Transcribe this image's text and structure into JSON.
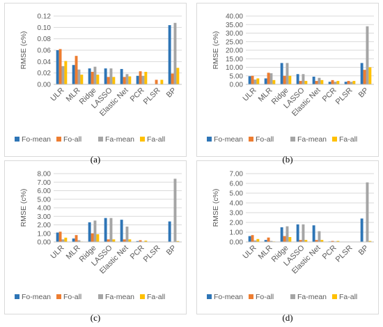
{
  "colors": {
    "Fo-mean": "#2e75b6",
    "Fo-all": "#ed7d31",
    "Fa-mean": "#a5a5a5",
    "Fa-all": "#ffc000"
  },
  "chart_data": [
    {
      "type": "bar",
      "panel_label": "(a)",
      "ylabel": "RMSE (c%)",
      "ylim": [
        0,
        0.12
      ],
      "yticks": [
        "0.00",
        "0.02",
        "0.04",
        "0.06",
        "0.08",
        "0.10",
        "0.12"
      ],
      "categories": [
        "ULR",
        "MLR",
        "Ridge",
        "LASSO",
        "Elastic Net",
        "PCR",
        "PLSR",
        "BP"
      ],
      "legend_position": "bottom",
      "grid": true,
      "series": [
        {
          "name": "Fo-mean",
          "values": [
            0.06,
            0.034,
            0.028,
            0.028,
            0.027,
            0.015,
            0,
            0.104
          ]
        },
        {
          "name": "Fo-all",
          "values": [
            0.062,
            0.05,
            0.022,
            0.013,
            0.013,
            0.023,
            0.008,
            0.019
          ]
        },
        {
          "name": "Fa-mean",
          "values": [
            0.032,
            0.026,
            0.031,
            0.028,
            0.018,
            0.015,
            0,
            0.108
          ]
        },
        {
          "name": "Fa-all",
          "values": [
            0.041,
            0.017,
            0.017,
            0.013,
            0.014,
            0.022,
            0.008,
            0.029
          ]
        }
      ]
    },
    {
      "type": "bar",
      "panel_label": "(b)",
      "ylabel": "RMSE (c%)",
      "ylim": [
        0,
        40
      ],
      "yticks": [
        "0.00",
        "5.00",
        "10.00",
        "15.00",
        "20.00",
        "25.00",
        "30.00",
        "35.00",
        "40.00"
      ],
      "categories": [
        "ULR",
        "MLR",
        "Ridge",
        "LASSO",
        "Elastic Net",
        "PCR",
        "PLSR",
        "BP"
      ],
      "legend_position": "bottom",
      "grid": true,
      "series": [
        {
          "name": "Fo-mean",
          "values": [
            4.8,
            3.5,
            12.5,
            6.0,
            4.5,
            1.5,
            1.5,
            12.5
          ]
        },
        {
          "name": "Fo-all",
          "values": [
            5.0,
            6.8,
            5.0,
            2.0,
            2.0,
            2.5,
            2.0,
            8.5
          ]
        },
        {
          "name": "Fa-mean",
          "values": [
            2.8,
            6.5,
            12.5,
            6.0,
            3.8,
            1.5,
            1.5,
            34.0
          ]
        },
        {
          "name": "Fa-all",
          "values": [
            3.5,
            2.5,
            5.0,
            2.0,
            2.5,
            2.0,
            2.0,
            10.0
          ]
        }
      ]
    },
    {
      "type": "bar",
      "panel_label": "(c)",
      "ylabel": "RMSE (c%)",
      "ylim": [
        0,
        8
      ],
      "yticks": [
        "0.00",
        "1.00",
        "2.00",
        "3.00",
        "4.00",
        "5.00",
        "6.00",
        "7.00",
        "8.00"
      ],
      "categories": [
        "ULR",
        "MLR",
        "Ridge",
        "LASSO",
        "Elastic Net",
        "PCR",
        "PLSR",
        "BP"
      ],
      "legend_position": "bottom",
      "grid": true,
      "series": [
        {
          "name": "Fo-mean",
          "values": [
            1.1,
            0.4,
            2.3,
            2.8,
            2.6,
            0.1,
            0,
            2.4
          ]
        },
        {
          "name": "Fo-all",
          "values": [
            1.2,
            0.8,
            1.0,
            0.3,
            0.3,
            0.2,
            0,
            0.0
          ]
        },
        {
          "name": "Fa-mean",
          "values": [
            0.3,
            0.2,
            2.5,
            2.8,
            1.8,
            0.05,
            0,
            7.4
          ]
        },
        {
          "name": "Fa-all",
          "values": [
            0.5,
            0.05,
            0.9,
            0.3,
            0.3,
            0.15,
            0,
            0.1
          ]
        }
      ]
    },
    {
      "type": "bar",
      "panel_label": "(d)",
      "ylabel": "RMSE (c%)",
      "ylim": [
        0,
        7
      ],
      "yticks": [
        "0.00",
        "1.00",
        "2.00",
        "3.00",
        "4.00",
        "5.00",
        "6.00",
        "7.00"
      ],
      "categories": [
        "ULR",
        "MLR",
        "Ridge",
        "LASSO",
        "Elastic Net",
        "PCR",
        "PLSR",
        "BP"
      ],
      "legend_position": "bottom",
      "grid": true,
      "series": [
        {
          "name": "Fo-mean",
          "values": [
            0.6,
            0.2,
            1.5,
            1.8,
            1.7,
            0.05,
            0,
            2.4
          ]
        },
        {
          "name": "Fo-all",
          "values": [
            0.7,
            0.45,
            0.6,
            0.2,
            0.2,
            0.1,
            0,
            0.0
          ]
        },
        {
          "name": "Fa-mean",
          "values": [
            0.15,
            0.1,
            1.6,
            1.8,
            1.1,
            0.05,
            0,
            6.1
          ]
        },
        {
          "name": "Fa-all",
          "values": [
            0.3,
            0.05,
            0.5,
            0.2,
            0.2,
            0.1,
            0,
            0.1
          ]
        }
      ]
    }
  ]
}
